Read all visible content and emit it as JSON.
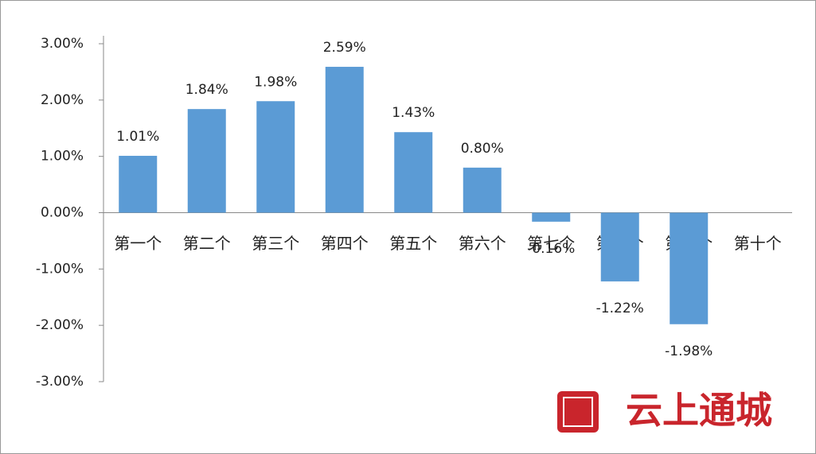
{
  "chart_data": {
    "type": "bar",
    "categories": [
      "第一个",
      "第二个",
      "第三个",
      "第四个",
      "第五个",
      "第六个",
      "第七个",
      "第八个",
      "第九个",
      "第十个"
    ],
    "values": [
      1.01,
      1.84,
      1.98,
      2.59,
      1.43,
      0.8,
      -0.16,
      -1.22,
      -1.98,
      null
    ],
    "value_labels": [
      "1.01%",
      "1.84%",
      "1.98%",
      "2.59%",
      "1.43%",
      "0.80%",
      "-0.16%",
      "-1.22%",
      "-1.98%",
      null
    ],
    "color": "#5b9bd5",
    "ylim": [
      -3,
      3
    ],
    "yticks": [
      {
        "value": -3,
        "label": "-3.00%"
      },
      {
        "value": -2,
        "label": "-2.00%"
      },
      {
        "value": -1,
        "label": "-1.00%"
      },
      {
        "value": 0,
        "label": "0.00%"
      },
      {
        "value": 1,
        "label": "1.00%"
      },
      {
        "value": 2,
        "label": "2.00%"
      },
      {
        "value": 3,
        "label": "3.00%"
      }
    ],
    "grid": false
  },
  "watermark": "云上通城"
}
